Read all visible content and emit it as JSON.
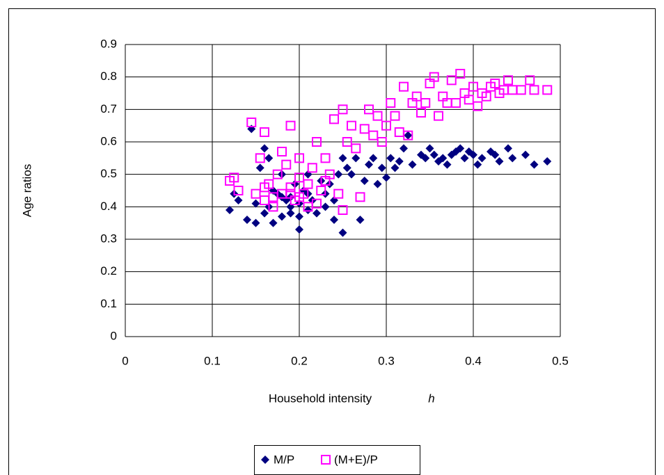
{
  "chart_data": {
    "type": "scatter",
    "x_label": "Household intensity",
    "x_label_symbol": "h",
    "y_label": "Age ratios",
    "xlim": [
      0,
      0.5
    ],
    "xticks": [
      0,
      0.1,
      0.2,
      0.3,
      0.4,
      0.5
    ],
    "ylim": [
      0,
      0.9
    ],
    "yticks": [
      0,
      0.1,
      0.2,
      0.3,
      0.4,
      0.5,
      0.6,
      0.7,
      0.8,
      0.9
    ],
    "grid": true,
    "legend": "bottom",
    "series": [
      {
        "name": "M/P",
        "color": "#000080",
        "marker": "diamond",
        "x": [
          0.12,
          0.125,
          0.13,
          0.14,
          0.145,
          0.15,
          0.155,
          0.16,
          0.16,
          0.165,
          0.17,
          0.17,
          0.175,
          0.18,
          0.18,
          0.185,
          0.19,
          0.19,
          0.195,
          0.2,
          0.2,
          0.205,
          0.21,
          0.21,
          0.215,
          0.22,
          0.225,
          0.23,
          0.235,
          0.24,
          0.245,
          0.25,
          0.25,
          0.255,
          0.26,
          0.265,
          0.27,
          0.275,
          0.28,
          0.285,
          0.29,
          0.295,
          0.3,
          0.305,
          0.31,
          0.315,
          0.32,
          0.325,
          0.33,
          0.34,
          0.345,
          0.35,
          0.355,
          0.36,
          0.365,
          0.37,
          0.375,
          0.38,
          0.385,
          0.39,
          0.395,
          0.4,
          0.405,
          0.41,
          0.42,
          0.425,
          0.43,
          0.44,
          0.445,
          0.46,
          0.47,
          0.485,
          0.165,
          0.19,
          0.2,
          0.23,
          0.18,
          0.15,
          0.21,
          0.24
        ],
        "values": [
          0.39,
          0.44,
          0.42,
          0.36,
          0.64,
          0.35,
          0.52,
          0.58,
          0.38,
          0.4,
          0.35,
          0.45,
          0.44,
          0.37,
          0.5,
          0.42,
          0.43,
          0.38,
          0.47,
          0.33,
          0.41,
          0.45,
          0.39,
          0.5,
          0.42,
          0.38,
          0.48,
          0.44,
          0.47,
          0.36,
          0.5,
          0.55,
          0.32,
          0.52,
          0.5,
          0.55,
          0.36,
          0.48,
          0.53,
          0.55,
          0.47,
          0.52,
          0.49,
          0.55,
          0.52,
          0.54,
          0.58,
          0.62,
          0.53,
          0.56,
          0.55,
          0.58,
          0.56,
          0.54,
          0.55,
          0.53,
          0.56,
          0.57,
          0.58,
          0.55,
          0.57,
          0.56,
          0.53,
          0.55,
          0.57,
          0.56,
          0.54,
          0.58,
          0.55,
          0.56,
          0.53,
          0.54,
          0.55,
          0.4,
          0.37,
          0.4,
          0.43,
          0.41,
          0.44,
          0.42
        ]
      },
      {
        "name": "(M+E)/P",
        "color": "#ff00ff",
        "marker": "square-open",
        "x": [
          0.12,
          0.125,
          0.13,
          0.145,
          0.15,
          0.155,
          0.16,
          0.16,
          0.165,
          0.17,
          0.175,
          0.18,
          0.18,
          0.185,
          0.19,
          0.19,
          0.195,
          0.2,
          0.2,
          0.205,
          0.21,
          0.21,
          0.215,
          0.22,
          0.225,
          0.23,
          0.235,
          0.24,
          0.245,
          0.25,
          0.25,
          0.255,
          0.26,
          0.265,
          0.27,
          0.275,
          0.28,
          0.285,
          0.29,
          0.295,
          0.3,
          0.305,
          0.31,
          0.315,
          0.32,
          0.325,
          0.33,
          0.335,
          0.34,
          0.345,
          0.35,
          0.355,
          0.36,
          0.365,
          0.37,
          0.375,
          0.38,
          0.385,
          0.39,
          0.395,
          0.4,
          0.405,
          0.41,
          0.415,
          0.42,
          0.425,
          0.43,
          0.435,
          0.44,
          0.445,
          0.455,
          0.465,
          0.47,
          0.485,
          0.17,
          0.2,
          0.19,
          0.22,
          0.16,
          0.23
        ],
        "values": [
          0.48,
          0.49,
          0.45,
          0.66,
          0.44,
          0.55,
          0.63,
          0.42,
          0.47,
          0.4,
          0.5,
          0.57,
          0.44,
          0.53,
          0.65,
          0.46,
          0.42,
          0.49,
          0.55,
          0.44,
          0.47,
          0.4,
          0.52,
          0.6,
          0.45,
          0.55,
          0.5,
          0.67,
          0.44,
          0.7,
          0.39,
          0.6,
          0.65,
          0.58,
          0.43,
          0.64,
          0.7,
          0.62,
          0.68,
          0.6,
          0.65,
          0.72,
          0.68,
          0.63,
          0.77,
          0.62,
          0.72,
          0.74,
          0.69,
          0.72,
          0.78,
          0.8,
          0.68,
          0.74,
          0.72,
          0.79,
          0.72,
          0.81,
          0.75,
          0.73,
          0.77,
          0.71,
          0.75,
          0.74,
          0.77,
          0.78,
          0.75,
          0.76,
          0.79,
          0.76,
          0.76,
          0.79,
          0.76,
          0.76,
          0.43,
          0.43,
          0.44,
          0.41,
          0.46,
          0.48
        ]
      }
    ]
  }
}
